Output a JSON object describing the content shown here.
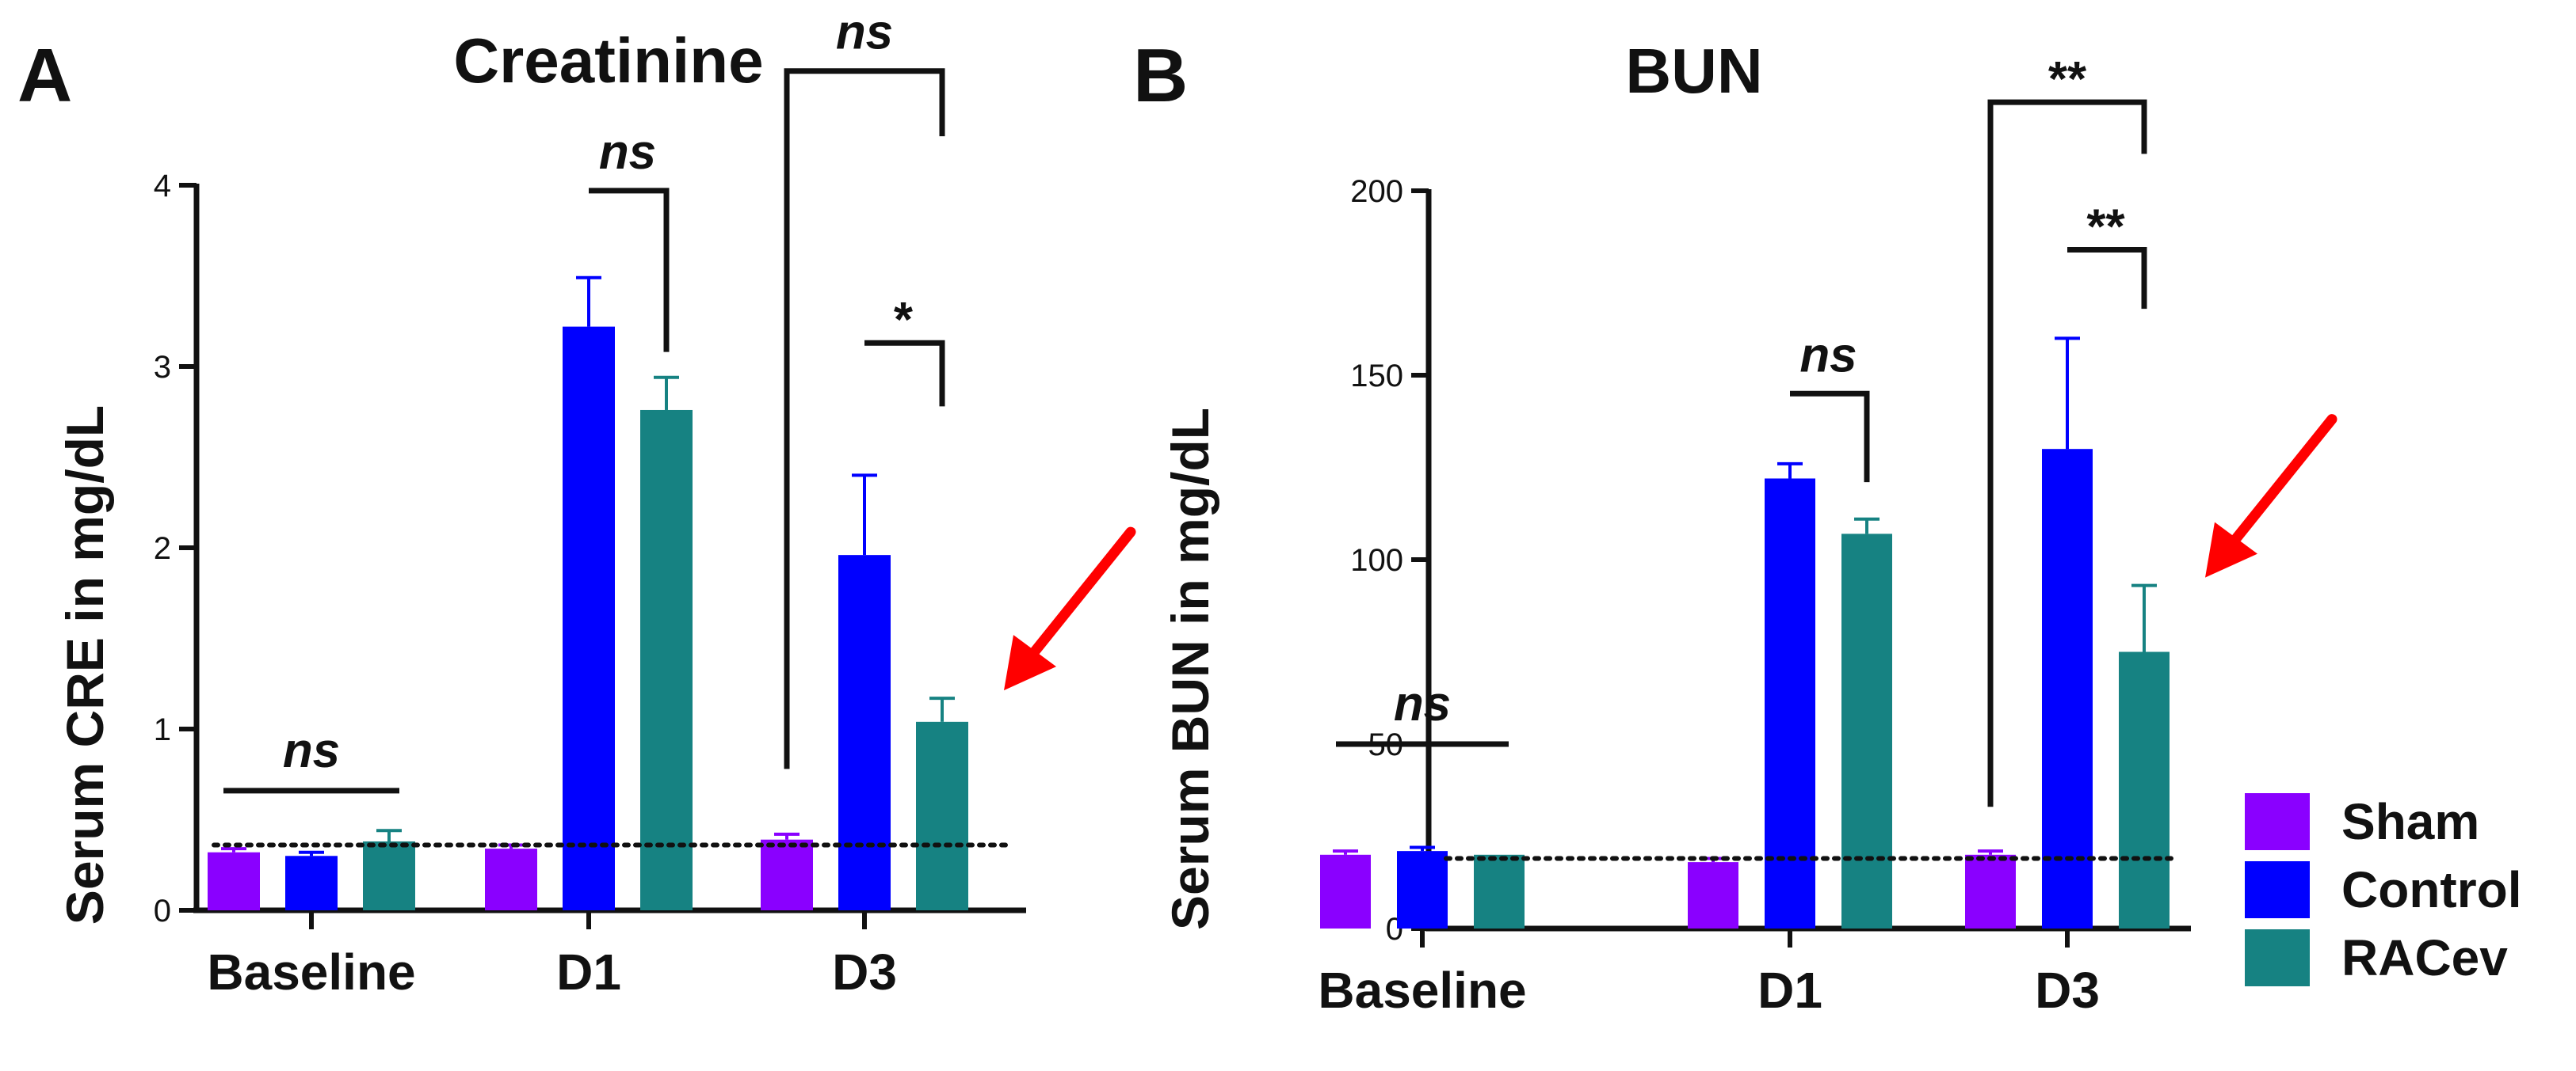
{
  "legend": [
    {
      "name": "Sham",
      "color": "#8a00ff"
    },
    {
      "name": "Control",
      "color": "#0000ff"
    },
    {
      "name": "RACev",
      "color": "#168282"
    }
  ],
  "annotation_color": "#ff0000",
  "chart_data": [
    {
      "panel": "A",
      "type": "bar",
      "title": "Creatinine",
      "xlabel": "",
      "ylabel": "Serum CRE in mg/dL",
      "ylim": [
        0,
        4
      ],
      "yticks": [
        "0",
        "1",
        "2",
        "3",
        "4"
      ],
      "categories": [
        "Baseline",
        "D1",
        "D3"
      ],
      "series": [
        {
          "name": "Sham",
          "values": [
            0.32,
            0.34,
            0.39
          ],
          "errors": [
            0.02,
            0.02,
            0.03
          ]
        },
        {
          "name": "Control",
          "values": [
            0.3,
            3.22,
            1.96
          ],
          "errors": [
            0.02,
            0.27,
            0.44
          ]
        },
        {
          "name": "RACev",
          "values": [
            0.38,
            2.76,
            1.04
          ],
          "errors": [
            0.06,
            0.18,
            0.13
          ]
        }
      ],
      "reference_line": 0.36,
      "significance": [
        {
          "label": "ns",
          "italic": true,
          "type": "line",
          "cat": 0,
          "from": 0,
          "to": 2,
          "y": 0.66
        },
        {
          "label": "ns",
          "italic": true,
          "type": "bracket",
          "cat": 1,
          "from": 1,
          "to": 2,
          "y": 3.97,
          "y1": 3.97,
          "y2": 3.08
        },
        {
          "label": "*",
          "italic": false,
          "type": "bracket",
          "cat": 2,
          "from": 1,
          "to": 2,
          "y": 3.13,
          "y1": 3.13,
          "y2": 2.78
        },
        {
          "label": "ns",
          "italic": true,
          "type": "bracket",
          "cat": 2,
          "from": 0,
          "to": 2,
          "y": 4.63,
          "y1": 0.78,
          "y2": 4.27
        }
      ],
      "arrow": {
        "cat": 2,
        "series": 2
      }
    },
    {
      "panel": "B",
      "type": "bar",
      "title": "BUN",
      "xlabel": "",
      "ylabel": "Serum BUN in mg/dL",
      "ylim": [
        0,
        200
      ],
      "yticks": [
        "0",
        "50",
        "100",
        "150",
        "200"
      ],
      "categories": [
        "Baseline",
        "D1",
        "D3"
      ],
      "series": [
        {
          "name": "Sham",
          "values": [
            20,
            18,
            20
          ],
          "errors": [
            1,
            1,
            1
          ]
        },
        {
          "name": "Control",
          "values": [
            21,
            122,
            130
          ],
          "errors": [
            1,
            4,
            30
          ]
        },
        {
          "name": "RACev",
          "values": [
            20,
            107,
            75
          ],
          "errors": [
            0,
            4,
            18
          ]
        }
      ],
      "reference_line": 19,
      "significance": [
        {
          "label": "ns",
          "italic": true,
          "type": "line",
          "cat": 0,
          "from": 0,
          "to": 2,
          "y": 50
        },
        {
          "label": "ns",
          "italic": true,
          "type": "bracket",
          "cat": 1,
          "from": 1,
          "to": 2,
          "y": 145,
          "y1": 145,
          "y2": 121
        },
        {
          "label": "**",
          "italic": false,
          "type": "bracket",
          "cat": 2,
          "from": 1,
          "to": 2,
          "y": 184,
          "y1": 184,
          "y2": 168
        },
        {
          "label": "**",
          "italic": false,
          "type": "bracket",
          "cat": 2,
          "from": 0,
          "to": 2,
          "y": 224,
          "y1": 33,
          "y2": 210
        }
      ],
      "arrow": {
        "cat": 2,
        "series": 2
      }
    }
  ]
}
